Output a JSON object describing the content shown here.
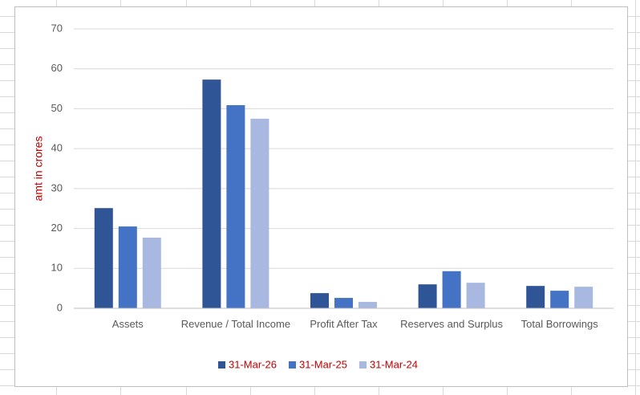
{
  "chart_data": {
    "type": "bar",
    "ylabel": "amt in crores",
    "categories": [
      "Assets",
      "Revenue / Total Income",
      "Profit After Tax",
      "Reserves and Surplus",
      "Total Borrowings"
    ],
    "series": [
      {
        "name": "31-Mar-26",
        "color": "#2f5597",
        "values": [
          25.1,
          57.3,
          3.8,
          6.0,
          5.6
        ]
      },
      {
        "name": "31-Mar-25",
        "color": "#4472c4",
        "values": [
          20.5,
          50.9,
          2.6,
          9.3,
          4.4
        ]
      },
      {
        "name": "31-Mar-24",
        "color": "#a9b8e0",
        "values": [
          17.7,
          47.5,
          1.6,
          6.4,
          5.4
        ]
      }
    ],
    "ylim": [
      0,
      70
    ],
    "yticks": [
      0,
      10,
      20,
      30,
      40,
      50,
      60,
      70
    ],
    "grid": true,
    "legend": "bottom"
  }
}
